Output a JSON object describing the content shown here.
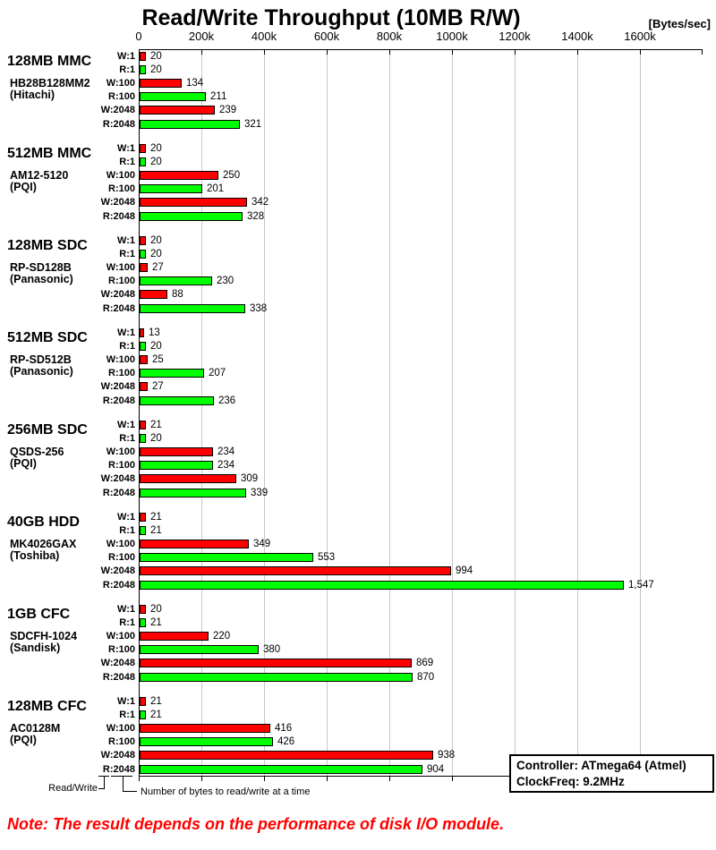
{
  "title": "Read/Write Throughput (10MB R/W)",
  "unit_label": "[Bytes/sec]",
  "colors": {
    "write_bar": "#ff0000",
    "read_bar": "#00ff00",
    "bar_border": "#000000",
    "gridline": "#c6c6c6",
    "note_text": "#ff0000"
  },
  "axis": {
    "tick_labels": [
      "0",
      "200k",
      "400k",
      "600k",
      "800k",
      "1000k",
      "1200k",
      "1400k",
      "1600k"
    ],
    "tick_values_k": [
      0,
      200,
      400,
      600,
      800,
      1000,
      1200,
      1400,
      1600
    ],
    "max_k": 1797,
    "grid": true
  },
  "chart_data": {
    "type": "bar",
    "orientation": "horizontal",
    "title": "Read/Write Throughput (10MB R/W)",
    "xlabel": "[Bytes/sec]",
    "xlim_k": [
      0,
      1797
    ],
    "units_note": "bar values are in thousands of bytes per second (k)",
    "row_labels": [
      "W:1",
      "R:1",
      "W:100",
      "R:100",
      "W:2048",
      "R:2048"
    ],
    "row_kinds": [
      "write",
      "read",
      "write",
      "read",
      "write",
      "read"
    ],
    "groups": [
      {
        "name": "128MB MMC",
        "model": "HB28B128MM2",
        "brand": "(Hitachi)",
        "values_k": [
          20,
          20,
          134,
          211,
          239,
          321
        ],
        "labels": [
          "20",
          "20",
          "134",
          "211",
          "239",
          "321"
        ]
      },
      {
        "name": "512MB MMC",
        "model": "AM12-5120",
        "brand": "(PQI)",
        "values_k": [
          20,
          20,
          250,
          201,
          342,
          328
        ],
        "labels": [
          "20",
          "20",
          "250",
          "201",
          "342",
          "328"
        ]
      },
      {
        "name": "128MB SDC",
        "model": "RP-SD128B",
        "brand": "(Panasonic)",
        "values_k": [
          20,
          20,
          27,
          230,
          88,
          338
        ],
        "labels": [
          "20",
          "20",
          "27",
          "230",
          "88",
          "338"
        ]
      },
      {
        "name": "512MB SDC",
        "model": "RP-SD512B",
        "brand": "(Panasonic)",
        "values_k": [
          13,
          20,
          25,
          207,
          27,
          236
        ],
        "labels": [
          "13",
          "20",
          "25",
          "207",
          "27",
          "236"
        ]
      },
      {
        "name": "256MB SDC",
        "model": "QSDS-256",
        "brand": "(PQI)",
        "values_k": [
          21,
          20,
          234,
          234,
          309,
          339
        ],
        "labels": [
          "21",
          "20",
          "234",
          "234",
          "309",
          "339"
        ]
      },
      {
        "name": "40GB HDD",
        "model": "MK4026GAX",
        "brand": "(Toshiba)",
        "values_k": [
          21,
          21,
          349,
          553,
          994,
          1547
        ],
        "labels": [
          "21",
          "21",
          "349",
          "553",
          "994",
          "1,547"
        ]
      },
      {
        "name": "1GB CFC",
        "model": "SDCFH-1024",
        "brand": "(Sandisk)",
        "values_k": [
          20,
          21,
          220,
          380,
          869,
          870
        ],
        "labels": [
          "20",
          "21",
          "220",
          "380",
          "869",
          "870"
        ]
      },
      {
        "name": "128MB CFC",
        "model": "AC0128M",
        "brand": "(PQI)",
        "values_k": [
          21,
          21,
          416,
          426,
          938,
          904
        ],
        "labels": [
          "21",
          "21",
          "416",
          "426",
          "938",
          "904"
        ]
      }
    ]
  },
  "legend": {
    "read_write": "Read/Write",
    "bytes_note": "Number of bytes to read/write at a time"
  },
  "info_box": {
    "line1": "Controller: ATmega64 (Atmel)",
    "line2": "ClockFreq: 9.2MHz"
  },
  "note": "Note: The result depends on the performance of disk I/O module."
}
